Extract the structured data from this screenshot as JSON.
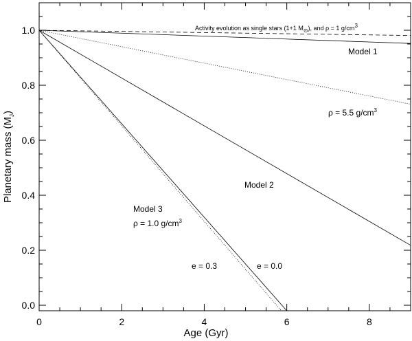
{
  "chart_data": {
    "type": "line",
    "xlabel": "Age (Gyr)",
    "ylabel_main": "Planetary mass (M",
    "ylabel_sub": "J",
    "ylabel_close": ")",
    "xlim": [
      0,
      9
    ],
    "ylim": [
      -0.02,
      1.1
    ],
    "xticks": [
      0,
      2,
      4,
      6,
      8
    ],
    "yticks": [
      0.0,
      0.2,
      0.4,
      0.6,
      0.8,
      1.0
    ],
    "xtick_labels": [
      "0",
      "2",
      "4",
      "6",
      "8"
    ],
    "ytick_labels": [
      "0.0",
      "0.2",
      "0.4",
      "0.6",
      "0.8",
      "1.0"
    ],
    "grid": false,
    "series": [
      {
        "style": "dashed",
        "color": "#000000",
        "x": [
          0,
          9
        ],
        "y": [
          1.0,
          0.981
        ]
      },
      {
        "style": "solid",
        "color": "#000000",
        "x": [
          0,
          9
        ],
        "y": [
          1.0,
          0.952
        ]
      },
      {
        "style": "dotted",
        "color": "#000000",
        "x": [
          0,
          9
        ],
        "y": [
          1.0,
          0.731
        ]
      },
      {
        "style": "solid",
        "color": "#000000",
        "x": [
          0,
          9
        ],
        "y": [
          1.0,
          0.218
        ]
      },
      {
        "style": "solid",
        "color": "#000000",
        "x": [
          0,
          6.0
        ],
        "y": [
          1.0,
          -0.02
        ]
      },
      {
        "style": "dotted",
        "color": "#000000",
        "x": [
          0,
          5.87
        ],
        "y": [
          1.0,
          -0.02
        ]
      }
    ],
    "annotations": {
      "activity": {
        "main": "Activity evolution as single stars (1+1 M",
        "sub": "⊙",
        "rest": "), and ρ = 1 g/cm",
        "sup": "3"
      },
      "model1": "Model 1",
      "rho55": {
        "main": "ρ = 5.5 g/cm",
        "sup": "3"
      },
      "model2": "Model 2",
      "model3": "Model 3",
      "rho10": {
        "main": "ρ = 1.0 g/cm",
        "sup": "3"
      },
      "e03": "e = 0.3",
      "e00": "e = 0.0"
    }
  }
}
